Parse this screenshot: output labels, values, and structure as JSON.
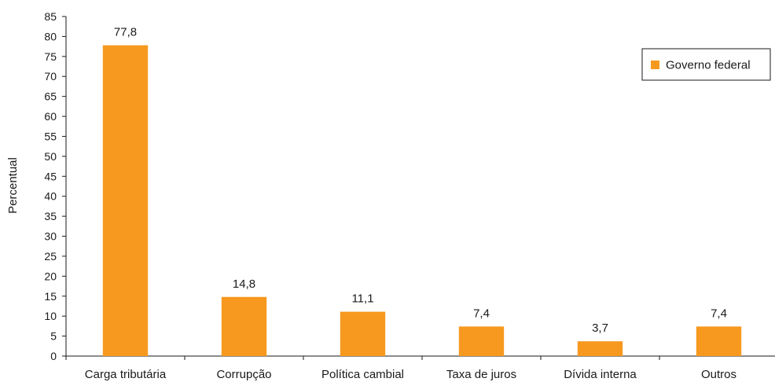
{
  "chart_data": {
    "type": "bar",
    "categories": [
      "Carga tributária",
      "Corrupção",
      "Política cambial",
      "Taxa de juros",
      "Dívida interna",
      "Outros"
    ],
    "series": [
      {
        "name": "Governo federal",
        "values": [
          77.8,
          14.8,
          11.1,
          7.4,
          3.7,
          7.4
        ],
        "data_labels": [
          "77,8",
          "14,8",
          "11,1",
          "7,4",
          "3,7",
          "7,4"
        ],
        "color": "#F7991F"
      }
    ],
    "ylabel": "Percentual",
    "xlabel": "",
    "ylim": [
      0,
      85
    ],
    "y_ticks": [
      "0",
      "5",
      "10",
      "15",
      "20",
      "25",
      "30",
      "35",
      "40",
      "45",
      "50",
      "55",
      "60",
      "65",
      "70",
      "75",
      "80",
      "85"
    ],
    "grid": false,
    "legend_position": "top-right"
  }
}
